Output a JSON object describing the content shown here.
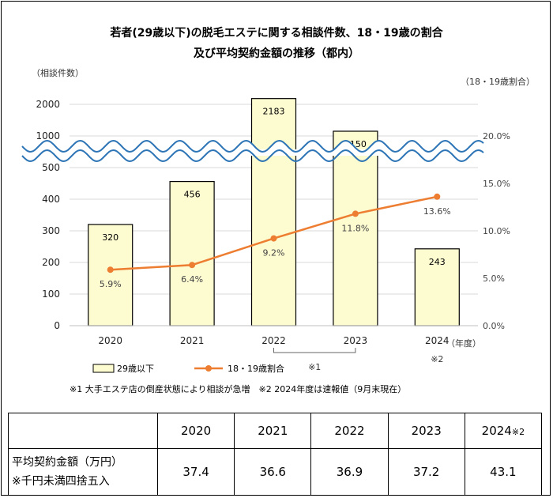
{
  "title_line1": "若者(29歳以下)の脱毛エステに関する相談件数、18・19歳の割合",
  "title_line2": "及び平均契約金額の推移（都内）",
  "chart_data": {
    "type": "bar+line",
    "left_axis_label": "（相談件数）",
    "right_axis_label": "（18・19歳割合）",
    "x_unit_label": "（年度）",
    "left_ticks_lower": [
      "0",
      "100",
      "200",
      "300",
      "400",
      "500"
    ],
    "left_ticks_upper": [
      "1000",
      "2000"
    ],
    "right_ticks": [
      "0.0%",
      "5.0%",
      "10.0%",
      "15.0%",
      "20.0%"
    ],
    "categories": [
      "2020",
      "2021",
      "2022",
      "2023",
      "2024"
    ],
    "bar_series": {
      "name": "29歳以下",
      "values": [
        320,
        456,
        2183,
        1150,
        243
      ],
      "labels": [
        "320",
        "456",
        "2183",
        "1150",
        "243"
      ],
      "color": "#fdfbd0"
    },
    "line_series": {
      "name": "18・19歳割合",
      "values": [
        5.9,
        6.4,
        9.2,
        11.8,
        13.6
      ],
      "labels": [
        "5.9%",
        "6.4%",
        "9.2%",
        "11.8%",
        "13.6%"
      ],
      "color": "#ed7d31"
    },
    "left_axis_break": true,
    "bracket_note": "※1",
    "note_2024": "※2"
  },
  "footnote": "※1 大手エステ店の倒産状態により相談が急増　※2 2024年度は速報値（9月末現在）",
  "table": {
    "years": [
      "2020",
      "2021",
      "2022",
      "2023",
      "2024"
    ],
    "last_year_mark": "※2",
    "row_label_1": "平均契約金額（万円）",
    "row_label_2": "※千円未満四捨五入",
    "values": [
      "37.4",
      "36.6",
      "36.9",
      "37.2",
      "43.1"
    ]
  }
}
